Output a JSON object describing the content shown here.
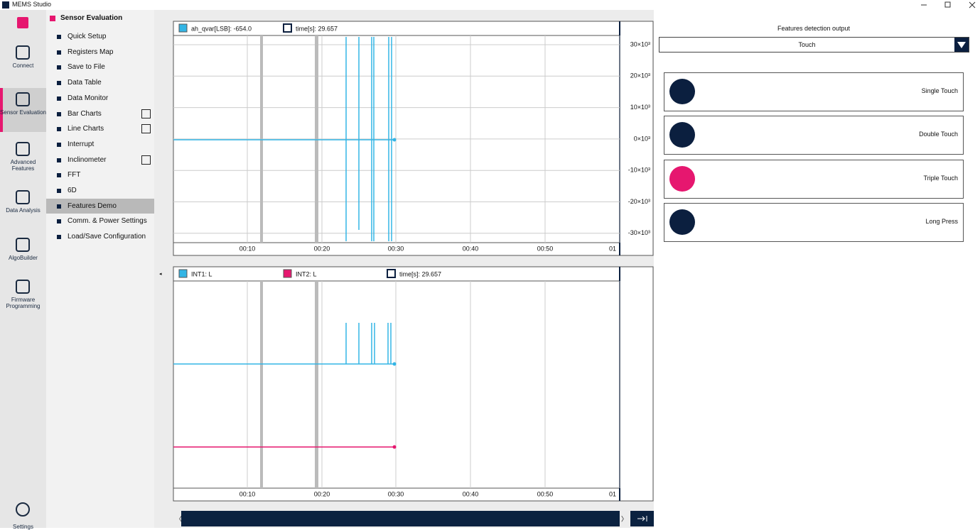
{
  "window": {
    "title": "MEMS Studio"
  },
  "sidebar": {
    "items": [
      "Connect",
      "Sensor Evaluation",
      "Advanced Features",
      "Data Analysis",
      "AlgoBuilder",
      "Firmware Programming"
    ],
    "settings": "Settings"
  },
  "menu": {
    "title": "Sensor Evaluation",
    "items": [
      "Quick Setup",
      "Registers Map",
      "Save to File",
      "Data Table",
      "Data Monitor",
      "Bar Charts",
      "Line Charts",
      "Interrupt",
      "Inclinometer",
      "FFT",
      "6D",
      "Features Demo",
      "Comm. & Power Settings",
      "Load/Save Configuration"
    ]
  },
  "plot_top": {
    "legend": [
      "ah_qvar[LSB]: -654.0",
      "time[s]: 29.657"
    ],
    "yticks": [
      "30×10³",
      "20×10³",
      "10×10³",
      "0×10³",
      "-10×10³",
      "-20×10³",
      "-30×10³"
    ],
    "xticks": [
      "00:10",
      "00:20",
      "00:30",
      "00:40",
      "00:50",
      "01"
    ]
  },
  "plot_bottom": {
    "legend": [
      "INT1: L",
      "INT2: L",
      "time[s]: 29.657"
    ],
    "xticks": [
      "00:10",
      "00:20",
      "00:30",
      "00:40",
      "00:50",
      "01"
    ]
  },
  "features": {
    "title": "Features detection output",
    "dropdown": "Touch",
    "items": [
      "Single Touch",
      "Double Touch",
      "Triple Touch",
      "Long Press"
    ]
  }
}
